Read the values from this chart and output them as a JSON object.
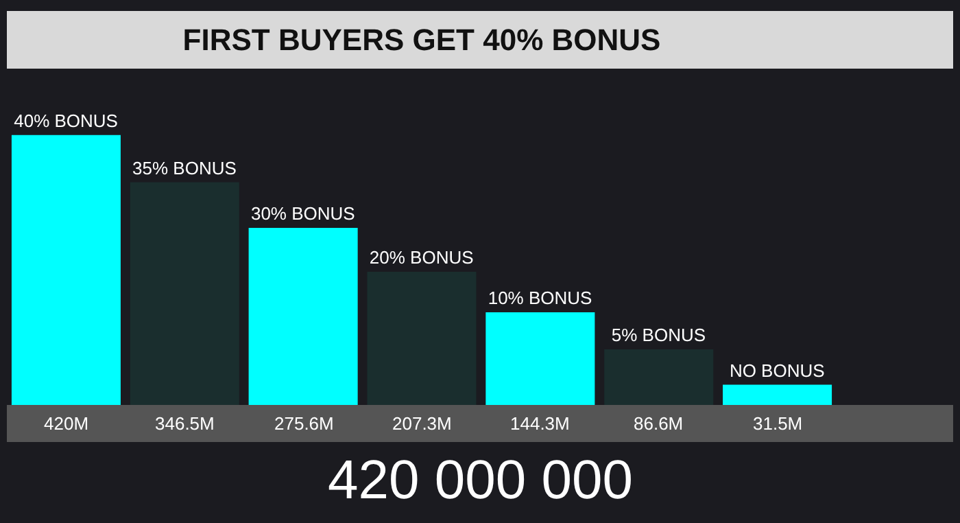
{
  "chart_data": {
    "type": "bar",
    "title": "FIRST BUYERS GET 40% BONUS",
    "categories": [
      "40% BONUS",
      "35% BONUS",
      "30% BONUS",
      "20% BONUS",
      "10% BONUS",
      "5% BONUS",
      "NO BONUS"
    ],
    "values": [
      420,
      346.5,
      275.6,
      207.3,
      144.3,
      86.6,
      31.5
    ],
    "colors": [
      "#00ffff",
      "#1a2e2e",
      "#00ffff",
      "#1a2e2e",
      "#00ffff",
      "#1a2e2e",
      "#00ffff"
    ],
    "value_labels": [
      "420M",
      "346.5M",
      "275.6M",
      "207.3M",
      "144.3M",
      "86.6M",
      "31.5M"
    ],
    "annotations": [
      "420 000 000"
    ]
  }
}
